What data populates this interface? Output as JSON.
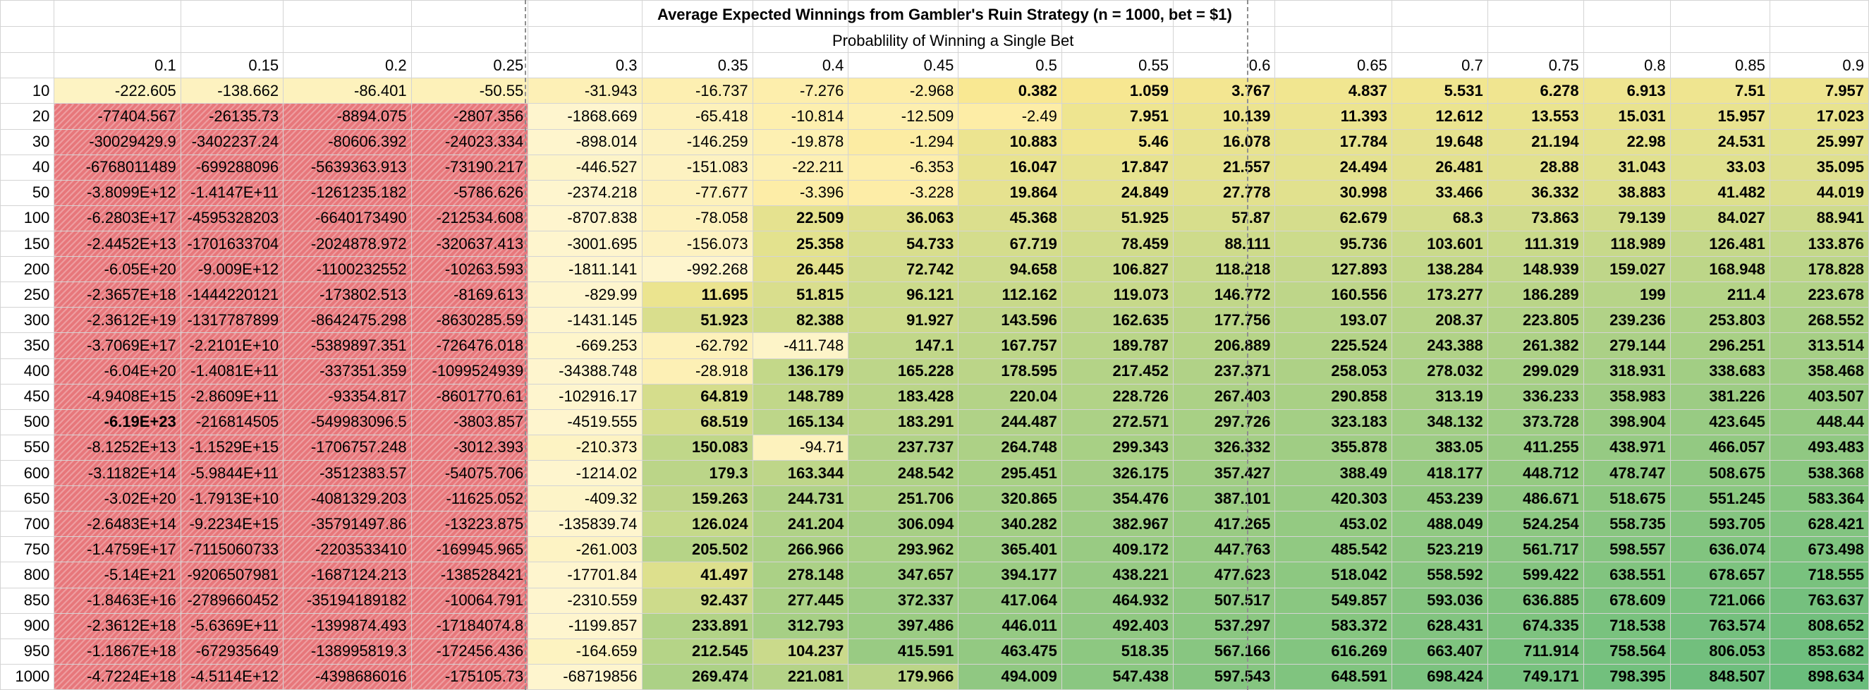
{
  "sheet": {
    "title": "Average Expected Winnings from Gambler's Ruin Strategy (n = 1000, bet = $1)",
    "subtitle": "Probablility of Winning a Single Bet",
    "probabilities": [
      "0.1",
      "0.15",
      "0.2",
      "0.25",
      "0.3",
      "0.35",
      "0.4",
      "0.45",
      "0.5",
      "0.55",
      "0.6",
      "0.65",
      "0.7",
      "0.75",
      "0.8",
      "0.85",
      "0.9"
    ],
    "colors": {
      "negative": "#e7777b",
      "low": "#fce992",
      "high": "#6abd7c",
      "grid": "#d4d4d4",
      "page_break": "#8e8e8e"
    },
    "rows": [
      {
        "label": "10",
        "values": [
          "-222.605",
          "-138.662",
          "-86.401",
          "-50.55",
          "-31.943",
          "-16.737",
          "-7.276",
          "-2.968",
          "0.382",
          "1.059",
          "3.767",
          "4.837",
          "5.531",
          "6.278",
          "6.913",
          "7.51",
          "7.957"
        ]
      },
      {
        "label": "20",
        "values": [
          "-77404.567",
          "-26135.73",
          "-8894.075",
          "-2807.356",
          "-1868.669",
          "-65.418",
          "-10.814",
          "-12.509",
          "-2.49",
          "7.951",
          "10.139",
          "11.393",
          "12.612",
          "13.553",
          "15.031",
          "15.957",
          "17.023"
        ]
      },
      {
        "label": "30",
        "values": [
          "-30029429.9",
          "-3402237.24",
          "-80606.392",
          "-24023.334",
          "-898.014",
          "-146.259",
          "-19.878",
          "-1.294",
          "10.883",
          "5.46",
          "16.078",
          "17.784",
          "19.648",
          "21.194",
          "22.98",
          "24.531",
          "25.997"
        ]
      },
      {
        "label": "40",
        "values": [
          "-6768011489",
          "-699288096",
          "-5639363.913",
          "-73190.217",
          "-446.527",
          "-151.083",
          "-22.211",
          "-6.353",
          "16.047",
          "17.847",
          "21.557",
          "24.494",
          "26.481",
          "28.88",
          "31.043",
          "33.03",
          "35.095"
        ]
      },
      {
        "label": "50",
        "values": [
          "-3.8099E+12",
          "-1.4147E+11",
          "-1261235.182",
          "-5786.626",
          "-2374.218",
          "-77.677",
          "-3.396",
          "-3.228",
          "19.864",
          "24.849",
          "27.778",
          "30.998",
          "33.466",
          "36.332",
          "38.883",
          "41.482",
          "44.019"
        ]
      },
      {
        "label": "100",
        "values": [
          "-6.2803E+17",
          "-4595328203",
          "-6640173490",
          "-212534.608",
          "-8707.838",
          "-78.058",
          "22.509",
          "36.063",
          "45.368",
          "51.925",
          "57.87",
          "62.679",
          "68.3",
          "73.863",
          "79.139",
          "84.027",
          "88.941"
        ]
      },
      {
        "label": "150",
        "values": [
          "-2.4452E+13",
          "-1701633704",
          "-2024878.972",
          "-320637.413",
          "-3001.695",
          "-156.073",
          "25.358",
          "54.733",
          "67.719",
          "78.459",
          "88.111",
          "95.736",
          "103.601",
          "111.319",
          "118.989",
          "126.481",
          "133.876"
        ]
      },
      {
        "label": "200",
        "values": [
          "-6.05E+20",
          "-9.009E+12",
          "-1100232552",
          "-10263.593",
          "-1811.141",
          "-992.268",
          "26.445",
          "72.742",
          "94.658",
          "106.827",
          "118.218",
          "127.893",
          "138.284",
          "148.939",
          "159.027",
          "168.948",
          "178.828"
        ]
      },
      {
        "label": "250",
        "values": [
          "-2.3657E+18",
          "-1444220121",
          "-173802.513",
          "-8169.613",
          "-829.99",
          "11.695",
          "51.815",
          "96.121",
          "112.162",
          "119.073",
          "146.772",
          "160.556",
          "173.277",
          "186.289",
          "199",
          "211.4",
          "223.678"
        ]
      },
      {
        "label": "300",
        "values": [
          "-2.3612E+19",
          "-1317787899",
          "-8642475.298",
          "-8630285.59",
          "-1431.145",
          "51.923",
          "82.388",
          "91.927",
          "143.596",
          "162.635",
          "177.756",
          "193.07",
          "208.37",
          "223.805",
          "239.236",
          "253.803",
          "268.552"
        ]
      },
      {
        "label": "350",
        "values": [
          "-3.7069E+17",
          "-2.2101E+10",
          "-5389897.351",
          "-726476.018",
          "-669.253",
          "-62.792",
          "-411.748",
          "147.1",
          "167.757",
          "189.787",
          "206.889",
          "225.524",
          "243.388",
          "261.382",
          "279.144",
          "296.251",
          "313.514"
        ]
      },
      {
        "label": "400",
        "values": [
          "-6.04E+20",
          "-1.4081E+11",
          "-337351.359",
          "-1099524939",
          "-34388.748",
          "-28.918",
          "136.179",
          "165.228",
          "178.595",
          "217.452",
          "237.371",
          "258.053",
          "278.032",
          "299.029",
          "318.931",
          "338.683",
          "358.468"
        ]
      },
      {
        "label": "450",
        "values": [
          "-4.9408E+15",
          "-2.8609E+11",
          "-93354.817",
          "-8601770.61",
          "-102916.17",
          "64.819",
          "148.789",
          "183.428",
          "220.04",
          "228.726",
          "267.403",
          "290.858",
          "313.19",
          "336.233",
          "358.983",
          "381.226",
          "403.507"
        ]
      },
      {
        "label": "500",
        "values": [
          "-6.19E+23",
          "-216814505",
          "-549983096.5",
          "-3803.857",
          "-4519.555",
          "68.519",
          "165.134",
          "183.291",
          "244.487",
          "272.571",
          "297.726",
          "323.183",
          "348.132",
          "373.728",
          "398.904",
          "423.645",
          "448.44"
        ]
      },
      {
        "label": "550",
        "values": [
          "-8.1252E+13",
          "-1.1529E+15",
          "-1706757.248",
          "-3012.393",
          "-210.373",
          "150.083",
          "-94.71",
          "237.737",
          "264.748",
          "299.343",
          "326.332",
          "355.878",
          "383.05",
          "411.255",
          "438.971",
          "466.057",
          "493.483"
        ]
      },
      {
        "label": "600",
        "values": [
          "-3.1182E+14",
          "-5.9844E+11",
          "-3512383.57",
          "-54075.706",
          "-1214.02",
          "179.3",
          "163.344",
          "248.542",
          "295.451",
          "326.175",
          "357.427",
          "388.49",
          "418.177",
          "448.712",
          "478.747",
          "508.675",
          "538.368"
        ]
      },
      {
        "label": "650",
        "values": [
          "-3.02E+20",
          "-1.7913E+10",
          "-4081329.203",
          "-11625.052",
          "-409.32",
          "159.263",
          "244.731",
          "251.706",
          "320.865",
          "354.476",
          "387.101",
          "420.303",
          "453.239",
          "486.671",
          "518.675",
          "551.245",
          "583.364"
        ]
      },
      {
        "label": "700",
        "values": [
          "-2.6483E+14",
          "-9.2234E+15",
          "-35791497.86",
          "-13223.875",
          "-135839.74",
          "126.024",
          "241.204",
          "306.094",
          "340.282",
          "382.967",
          "417.265",
          "453.02",
          "488.049",
          "524.254",
          "558.735",
          "593.705",
          "628.421"
        ]
      },
      {
        "label": "750",
        "values": [
          "-1.4759E+17",
          "-7115060733",
          "-2203533410",
          "-169945.965",
          "-261.003",
          "205.502",
          "266.966",
          "293.962",
          "365.401",
          "409.172",
          "447.763",
          "485.542",
          "523.219",
          "561.717",
          "598.557",
          "636.074",
          "673.498"
        ]
      },
      {
        "label": "800",
        "values": [
          "-5.14E+21",
          "-9206507981",
          "-1687124.213",
          "-138528421",
          "-17701.84",
          "41.497",
          "278.148",
          "347.657",
          "394.177",
          "438.221",
          "477.623",
          "518.042",
          "558.592",
          "599.422",
          "638.551",
          "678.657",
          "718.555"
        ]
      },
      {
        "label": "850",
        "values": [
          "-1.8463E+16",
          "-2789660452",
          "-35194189182",
          "-10064.791",
          "-2310.559",
          "92.437",
          "277.445",
          "372.337",
          "417.064",
          "464.932",
          "507.517",
          "549.857",
          "593.036",
          "636.885",
          "678.609",
          "721.066",
          "763.637"
        ]
      },
      {
        "label": "900",
        "values": [
          "-2.3612E+18",
          "-5.6369E+11",
          "-1399874.493",
          "-17184074.8",
          "-1199.857",
          "233.891",
          "312.793",
          "397.486",
          "446.011",
          "492.403",
          "537.297",
          "583.372",
          "628.431",
          "674.335",
          "718.538",
          "763.574",
          "808.652"
        ]
      },
      {
        "label": "950",
        "values": [
          "-1.1867E+18",
          "-672935649",
          "-138995819.3",
          "-172456.436",
          "-164.659",
          "212.545",
          "104.237",
          "415.591",
          "463.475",
          "518.35",
          "567.166",
          "616.269",
          "663.407",
          "711.914",
          "758.564",
          "806.053",
          "853.682"
        ]
      },
      {
        "label": "1000",
        "values": [
          "-4.7224E+18",
          "-4.5114E+12",
          "-4398686016",
          "-175105.73",
          "-68719856",
          "269.474",
          "221.081",
          "179.966",
          "494.009",
          "547.438",
          "597.543",
          "648.591",
          "698.424",
          "749.171",
          "798.395",
          "848.507",
          "898.634"
        ]
      }
    ]
  }
}
